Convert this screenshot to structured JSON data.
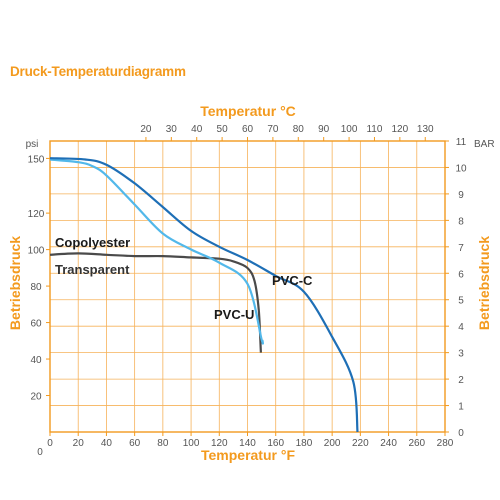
{
  "page": {
    "heading": "Druck-Temperaturdiagramm",
    "accent_color": "#f39a1e",
    "grid_color": "#f6b25a"
  },
  "chart_data": {
    "type": "line",
    "title": "",
    "x_top": {
      "label": "Temperatur °C",
      "ticks": [
        20,
        30,
        40,
        50,
        60,
        70,
        80,
        90,
        100,
        110,
        120,
        130
      ],
      "range": [
        17.8,
        137.8
      ]
    },
    "x_bottom": {
      "label": "Temperatur °F",
      "ticks": [
        0,
        20,
        40,
        60,
        80,
        100,
        120,
        140,
        160,
        180,
        200,
        220,
        240,
        260,
        280
      ],
      "range": [
        0,
        280
      ],
      "extra_label": "0"
    },
    "y_left": {
      "label": "Betriebsdruck",
      "unit": "psi",
      "ticks": [
        20,
        40,
        60,
        80,
        100,
        120,
        150
      ],
      "range": [
        11,
        160
      ]
    },
    "y_right": {
      "label": "Betriebsdruck",
      "unit": "BAR",
      "ticks": [
        0,
        1,
        2,
        3,
        4,
        5,
        6,
        7,
        8,
        9,
        10,
        11
      ],
      "range": [
        0,
        11
      ]
    },
    "grid": true,
    "series": [
      {
        "name": "PVC-C",
        "color": "#1e6fb6",
        "x": [
          0,
          25,
          40,
          60,
          80,
          100,
          120,
          140,
          160,
          180,
          200,
          215
        ],
        "y": [
          10.35,
          10.3,
          10.1,
          9.4,
          8.5,
          7.6,
          7.0,
          6.5,
          5.9,
          5.3,
          3.6,
          1.9
        ],
        "x_end": 218,
        "y_end": 0.0
      },
      {
        "name": "PVC-U",
        "color": "#52b8ea",
        "x": [
          0,
          20,
          30,
          40,
          60,
          80,
          100,
          120,
          140,
          150
        ],
        "y": [
          10.3,
          10.2,
          10.05,
          9.7,
          8.6,
          7.5,
          6.9,
          6.4,
          5.6,
          3.5
        ],
        "x_end": 150.5,
        "y_end": 3.5
      },
      {
        "name": "Copolyester",
        "color": "#4a4a4a",
        "x": [
          0,
          20,
          40,
          60,
          80,
          100,
          120,
          130,
          140,
          145,
          148,
          149.5
        ],
        "y": [
          6.7,
          6.75,
          6.7,
          6.65,
          6.65,
          6.6,
          6.55,
          6.45,
          6.2,
          5.7,
          4.6,
          3.0
        ]
      }
    ],
    "annotations": [
      {
        "text": "Copolyester",
        "near_series": "Copolyester"
      },
      {
        "text": "Transparent",
        "near_series": "Copolyester"
      },
      {
        "text": "PVC-U",
        "near_series": "PVC-U"
      },
      {
        "text": "PVC-C",
        "near_series": "PVC-C"
      }
    ]
  }
}
